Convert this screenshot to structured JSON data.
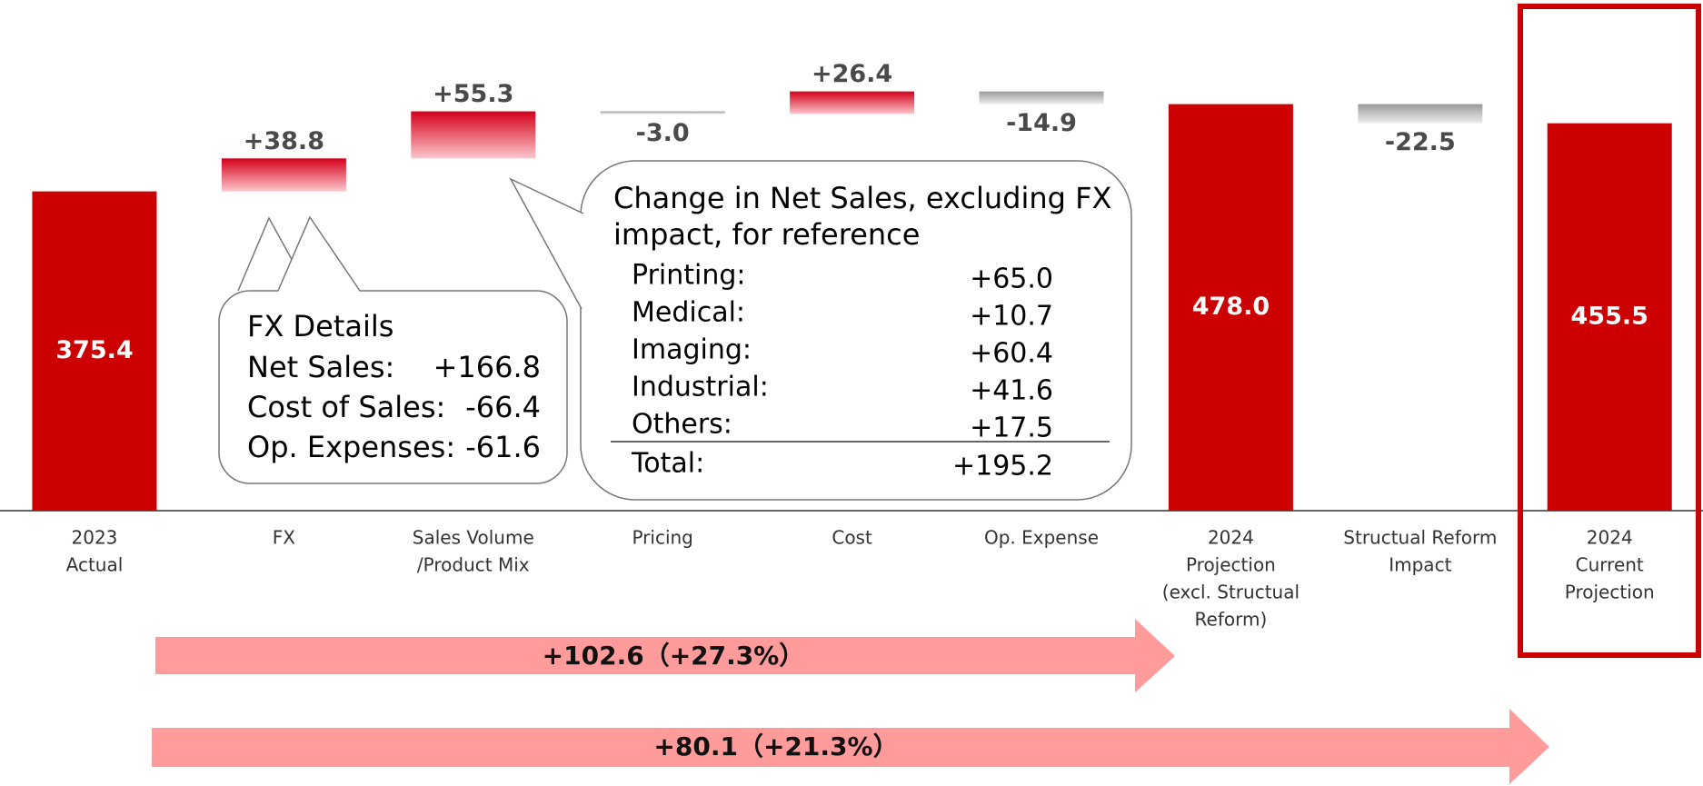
{
  "chart_data": {
    "type": "waterfall",
    "categories": [
      [
        "2023",
        "Actual"
      ],
      [
        "FX"
      ],
      [
        "Sales Volume",
        "/Product Mix"
      ],
      [
        "Pricing"
      ],
      [
        "Cost"
      ],
      [
        "Op. Expense"
      ],
      [
        "2024",
        "Projection",
        "(excl. Structual",
        "Reform)"
      ],
      [
        "Structual Reform",
        "Impact"
      ],
      [
        "2024",
        "Current",
        "Projection"
      ]
    ],
    "values": [
      375.4,
      38.8,
      55.3,
      -3.0,
      26.4,
      -14.9,
      478.0,
      -22.5,
      455.5
    ],
    "value_labels": [
      "375.4",
      "+38.8",
      "+55.3",
      "-3.0",
      "+26.4",
      "-14.9",
      "478.0",
      "-22.5",
      "455.5"
    ],
    "measure": [
      "absolute",
      "relative",
      "relative",
      "relative",
      "relative",
      "relative",
      "absolute",
      "relative",
      "absolute"
    ],
    "colors": {
      "absolute": "#cc0000",
      "increase": "#d4001a",
      "decrease": "#9a9a9a"
    },
    "fx_details": {
      "title": "FX Details",
      "rows": [
        [
          "Net Sales:",
          "+166.8"
        ],
        [
          "Cost of Sales:",
          "-66.4"
        ],
        [
          "Op. Expenses:",
          "-61.6"
        ]
      ]
    },
    "net_sales_note": {
      "title": [
        "Change in Net Sales, excluding FX",
        "impact, for reference"
      ],
      "rows": [
        [
          "Printing:",
          "+65.0"
        ],
        [
          "Medical:",
          "+10.7"
        ],
        [
          "Imaging:",
          "+60.4"
        ],
        [
          "Industrial:",
          "+41.6"
        ],
        [
          "Others:",
          "+17.5"
        ]
      ],
      "total": [
        "Total:",
        "+195.2"
      ]
    },
    "arrows": [
      "+102.6（+27.3%）",
      "+80.1（+21.3%）"
    ]
  }
}
